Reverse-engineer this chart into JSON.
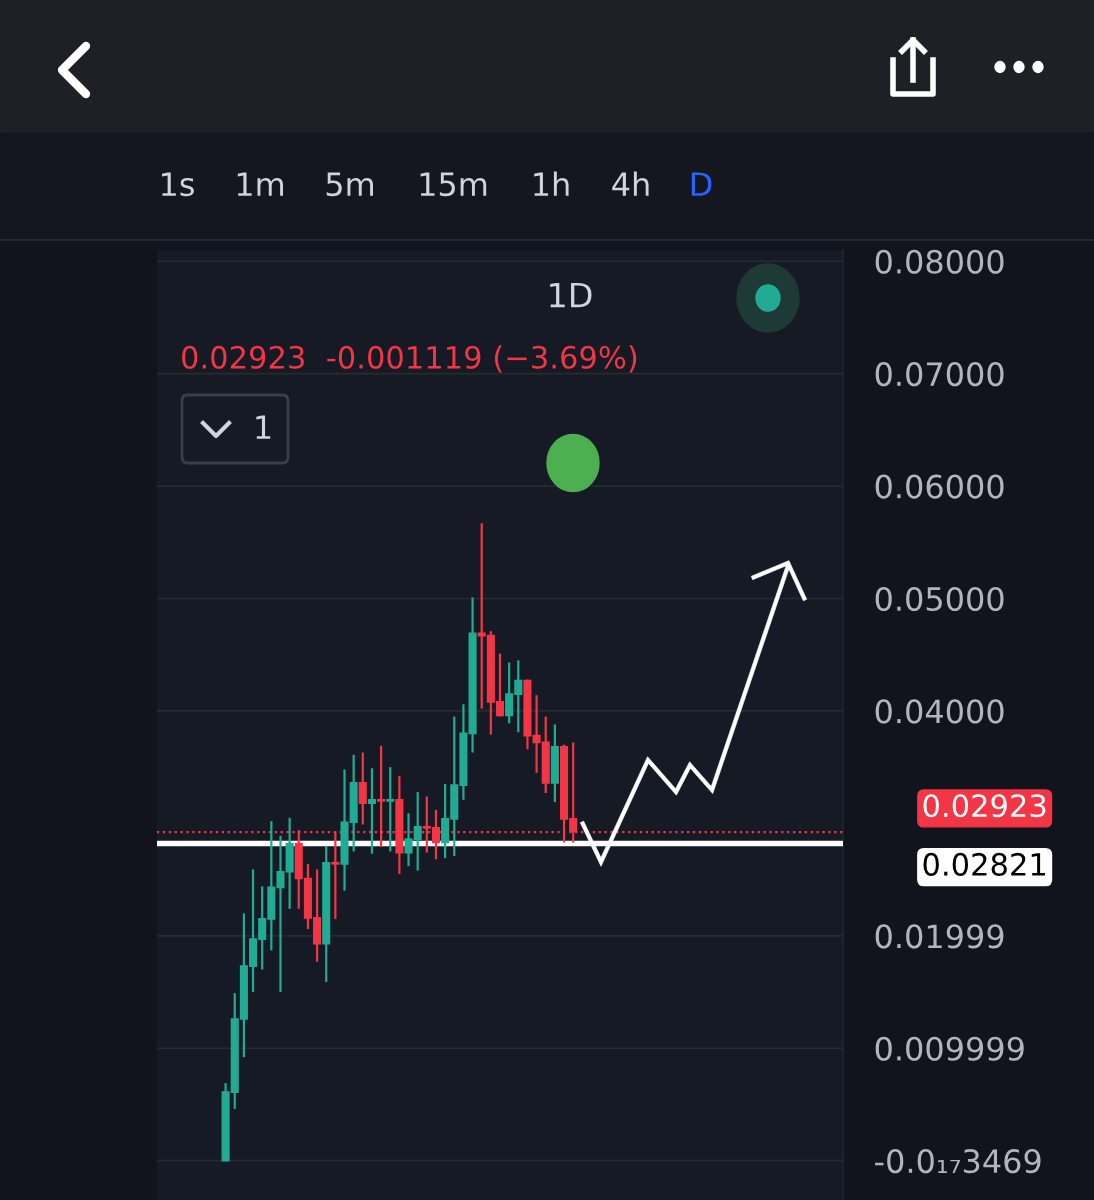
{
  "chart_data": {
    "type": "candlestick",
    "title": "1D",
    "subtitle": "0.02923  -0.001119 (−3.69%)",
    "categories": [
      null,
      null,
      null,
      null,
      null,
      null,
      null,
      null,
      null,
      null,
      null,
      null,
      null,
      null,
      null,
      null,
      null,
      null,
      null,
      null,
      null,
      null,
      null,
      null,
      null,
      null,
      null,
      null,
      null,
      null,
      null,
      null,
      null,
      null,
      null,
      null,
      null,
      null,
      null,
      null,
      null,
      null,
      null,
      null,
      null,
      null,
      null,
      null,
      null,
      null,
      null,
      null,
      null,
      null,
      null,
      null,
      null,
      null,
      null,
      null,
      null,
      null,
      null,
      null,
      null,
      null,
      null,
      null,
      null,
      null,
      null,
      null,
      null,
      null,
      null
    ],
    "ohlc": [
      null,
      null,
      null,
      null,
      null,
      null,
      null,
      [
        0.0,
        0.0069,
        0.0,
        0.0061
      ],
      [
        0.0061,
        0.0149,
        0.0046,
        0.0126
      ],
      [
        0.0126,
        0.022,
        0.0092,
        0.0173
      ],
      [
        0.0173,
        0.0259,
        0.015,
        0.0197
      ],
      [
        0.0197,
        0.0244,
        0.017,
        0.0215
      ],
      [
        0.0215,
        0.0302,
        0.0187,
        0.0243
      ],
      [
        0.0243,
        0.0289,
        0.015,
        0.0257
      ],
      [
        0.0257,
        0.0305,
        0.0224,
        0.0282
      ],
      [
        0.0282,
        0.0294,
        0.0224,
        0.0251
      ],
      [
        0.0251,
        0.0264,
        0.0206,
        0.0216
      ],
      [
        0.0216,
        0.0259,
        0.0177,
        0.0193
      ],
      [
        0.0193,
        0.028,
        0.0159,
        0.0265
      ],
      [
        0.0265,
        0.0293,
        0.0215,
        0.0264
      ],
      [
        0.0264,
        0.0348,
        0.024,
        0.0301
      ],
      [
        0.0301,
        0.0361,
        0.0275,
        0.0336
      ],
      [
        0.0336,
        0.0363,
        0.0299,
        0.0318
      ],
      [
        0.0318,
        0.0349,
        0.0273,
        0.0321
      ],
      [
        0.0321,
        0.0369,
        0.0279,
        0.032
      ],
      [
        0.032,
        0.035,
        0.0275,
        0.0321
      ],
      [
        0.0321,
        0.0342,
        0.0255,
        0.0274
      ],
      [
        0.0274,
        0.0309,
        0.0262,
        0.0286
      ],
      [
        0.0286,
        0.0328,
        0.0258,
        0.0297
      ],
      [
        0.0297,
        0.0324,
        0.0274,
        0.0296
      ],
      [
        0.0296,
        0.0312,
        0.0268,
        0.0283
      ],
      [
        0.0283,
        0.0335,
        0.0269,
        0.0304
      ],
      [
        0.0304,
        0.0395,
        0.0271,
        0.0334
      ],
      [
        0.0334,
        0.0406,
        0.0321,
        0.038
      ],
      [
        0.038,
        0.0501,
        0.0363,
        0.0469
      ],
      [
        0.0469,
        0.0567,
        0.0402,
        0.0467
      ],
      [
        0.0467,
        0.0471,
        0.0379,
        0.0408
      ],
      [
        0.0408,
        0.0451,
        0.0395,
        0.0396
      ],
      [
        0.0396,
        0.0443,
        0.0389,
        0.0415
      ],
      [
        0.0415,
        0.0445,
        0.0381,
        0.0427
      ],
      [
        0.0427,
        0.0428,
        0.0366,
        0.0378
      ],
      [
        0.0378,
        0.0414,
        0.0345,
        0.0372
      ],
      [
        0.0372,
        0.0395,
        0.0327,
        0.0336
      ],
      [
        0.0336,
        0.0388,
        0.0319,
        0.0368
      ],
      [
        0.0368,
        0.037,
        0.0283,
        0.0304
      ],
      [
        0.0304,
        0.0372,
        0.0283,
        0.0293
      ],
      null,
      null,
      null,
      null,
      null,
      null,
      null,
      null,
      null,
      null,
      null,
      null,
      null,
      null,
      null,
      null,
      null,
      null,
      null,
      null,
      null,
      null,
      null,
      null,
      null,
      null,
      null,
      null,
      null
    ],
    "colors": [
      null,
      null,
      null,
      null,
      null,
      null,
      null,
      "#22ab94",
      "#22ab94",
      "#22ab94",
      "#22ab94",
      "#22ab94",
      "#22ab94",
      "#22ab94",
      "#22ab94",
      "#f23645",
      "#f23645",
      "#f23645",
      "#22ab94",
      "#f23645",
      "#22ab94",
      "#22ab94",
      "#f23645",
      "#22ab94",
      "#f23645",
      "#22ab94",
      "#f23645",
      "#22ab94",
      "#22ab94",
      "#f23645",
      "#f23645",
      "#22ab94",
      "#22ab94",
      "#22ab94",
      "#22ab94",
      "#f23645",
      "#f23645",
      "#f23645",
      "#22ab94",
      "#22ab94",
      "#f23645",
      "#f23645",
      "#f23645",
      "#22ab94",
      "#f23645",
      "#f23645",
      null,
      null,
      null,
      null,
      null,
      null,
      null,
      null,
      null,
      null,
      null,
      null,
      null,
      null,
      null,
      null,
      null,
      null,
      null,
      null,
      null,
      null,
      null,
      null,
      null,
      null,
      null,
      null,
      null
    ],
    "ylim": [
      -0.0035,
      0.081
    ],
    "yticks": [
      {
        "value": 0.08,
        "label": "0.08000"
      },
      {
        "value": 0.07,
        "label": "0.07000"
      },
      {
        "value": 0.06,
        "label": "0.06000"
      },
      {
        "value": 0.05,
        "label": "0.05000"
      },
      {
        "value": 0.04,
        "label": "0.04000"
      },
      0.01999,
      0.009999,
      {
        "value": 0,
        "label": "-0.0₁₇3469"
      }
    ],
    "grid": "y",
    "ref_lines": [
      {
        "axis": "y",
        "value": 0.02923,
        "label": "0.02923",
        "color": "#f23645",
        "line_style": "dotted"
      },
      {
        "axis": "y",
        "value": 0.02821,
        "label": "0.02821",
        "color": "#ffffff",
        "line_style": "solid"
      }
    ],
    "annotations": [
      "1s",
      "1m",
      "5m",
      "15m",
      "1h",
      "4h",
      "D",
      "1"
    ]
  }
}
